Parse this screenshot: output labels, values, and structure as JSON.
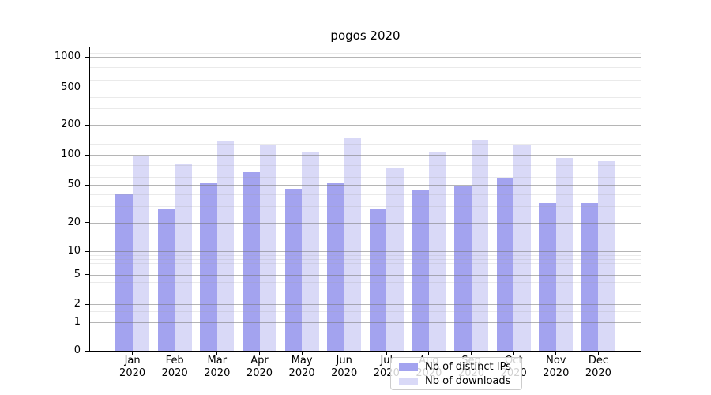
{
  "chart_data": {
    "type": "bar",
    "title": "pogos 2020",
    "categories": [
      "Jan",
      "Feb",
      "Mar",
      "Apr",
      "May",
      "Jun",
      "Jul",
      "Aug",
      "Sep",
      "Oct",
      "Nov",
      "Dec"
    ],
    "x_tick_second_line": "2020",
    "series": [
      {
        "name": "Nb of distinct IPs",
        "color": "#a3a3ef",
        "values": [
          40,
          28,
          52,
          67,
          46,
          52,
          28,
          44,
          48,
          59,
          32,
          32
        ]
      },
      {
        "name": "Nb of downloads",
        "color": "#d9d9f7",
        "values": [
          97,
          83,
          141,
          126,
          106,
          148,
          74,
          108,
          142,
          127,
          93,
          87
        ]
      }
    ],
    "xlabel": "",
    "ylabel": "",
    "yscale": "symlog",
    "ylim": [
      0,
      1250
    ],
    "y_major_ticks": [
      0,
      1,
      2,
      5,
      10,
      20,
      50,
      100,
      200,
      500,
      1000
    ],
    "y_minor_gridlines": [
      0.5,
      1.5,
      3,
      4,
      6,
      7,
      8,
      9,
      15,
      30,
      40,
      60,
      70,
      80,
      90,
      130,
      300,
      400,
      600,
      700,
      800,
      900,
      1100
    ],
    "grid": true,
    "legend_position": "lower center",
    "colors": {
      "major_grid": "#b0b0b0",
      "minor_grid": "#e7e7e7",
      "spine": "#000000",
      "background": "#ffffff"
    }
  }
}
